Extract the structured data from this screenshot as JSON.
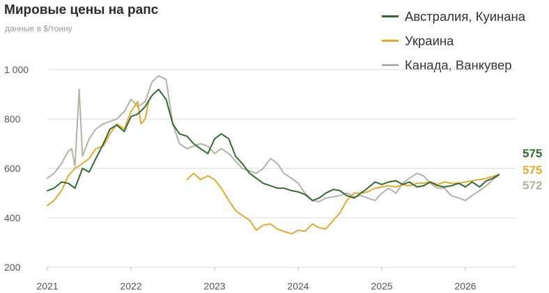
{
  "header": {
    "title": "Мировые цены на рапс",
    "subtitle": "данные в $/тонну"
  },
  "colors": {
    "australia": "#2e6b2f",
    "ukraine": "#e0aa2e",
    "canada": "#b4b2a4",
    "grid": "#d9d9d9"
  },
  "chart_data": {
    "type": "line",
    "title": "Мировые цены на рапс",
    "subtitle": "данные в $/тонну",
    "xlabel": "",
    "ylabel": "",
    "xlim": [
      2021.0,
      2026.6
    ],
    "ylim": [
      200,
      1000
    ],
    "y_ticks": [
      200,
      400,
      600,
      800,
      1000
    ],
    "y_tick_labels": [
      "200",
      "400",
      "600",
      "800",
      "1 000"
    ],
    "x_ticks": [
      2021,
      2022,
      2023,
      2024,
      2025,
      2026
    ],
    "x_tick_labels": [
      "2021",
      "2022",
      "2023",
      "2024",
      "2025",
      "2026"
    ],
    "grid": true,
    "legend": "top-right",
    "series": [
      {
        "name": "Австралия, Куинана",
        "color": "#2e6b2f",
        "end_label": "575",
        "points": [
          [
            2021.0,
            510
          ],
          [
            2021.08,
            520
          ],
          [
            2021.17,
            545
          ],
          [
            2021.25,
            540
          ],
          [
            2021.33,
            520
          ],
          [
            2021.42,
            600
          ],
          [
            2021.5,
            585
          ],
          [
            2021.58,
            640
          ],
          [
            2021.67,
            700
          ],
          [
            2021.75,
            760
          ],
          [
            2021.83,
            775
          ],
          [
            2021.92,
            750
          ],
          [
            2022.0,
            810
          ],
          [
            2022.08,
            820
          ],
          [
            2022.17,
            850
          ],
          [
            2022.25,
            895
          ],
          [
            2022.33,
            920
          ],
          [
            2022.42,
            880
          ],
          [
            2022.5,
            780
          ],
          [
            2022.58,
            740
          ],
          [
            2022.67,
            730
          ],
          [
            2022.75,
            700
          ],
          [
            2022.83,
            680
          ],
          [
            2022.92,
            660
          ],
          [
            2023.0,
            720
          ],
          [
            2023.08,
            740
          ],
          [
            2023.17,
            720
          ],
          [
            2023.25,
            650
          ],
          [
            2023.33,
            620
          ],
          [
            2023.42,
            580
          ],
          [
            2023.5,
            560
          ],
          [
            2023.58,
            540
          ],
          [
            2023.67,
            530
          ],
          [
            2023.75,
            520
          ],
          [
            2023.83,
            520
          ],
          [
            2023.92,
            510
          ],
          [
            2024.0,
            505
          ],
          [
            2024.08,
            495
          ],
          [
            2024.17,
            470
          ],
          [
            2024.25,
            480
          ],
          [
            2024.33,
            500
          ],
          [
            2024.42,
            515
          ],
          [
            2024.5,
            510
          ],
          [
            2024.58,
            490
          ],
          [
            2024.67,
            480
          ],
          [
            2024.75,
            500
          ],
          [
            2024.83,
            520
          ],
          [
            2024.92,
            545
          ],
          [
            2025.0,
            535
          ],
          [
            2025.08,
            545
          ],
          [
            2025.17,
            550
          ],
          [
            2025.25,
            535
          ],
          [
            2025.33,
            545
          ],
          [
            2025.42,
            525
          ],
          [
            2025.5,
            530
          ],
          [
            2025.58,
            545
          ],
          [
            2025.67,
            530
          ],
          [
            2025.75,
            525
          ],
          [
            2025.83,
            530
          ],
          [
            2025.92,
            540
          ],
          [
            2026.0,
            525
          ],
          [
            2026.08,
            545
          ],
          [
            2026.17,
            525
          ],
          [
            2026.25,
            550
          ],
          [
            2026.33,
            560
          ],
          [
            2026.4,
            575
          ]
        ]
      },
      {
        "name": "Украина",
        "color": "#e0aa2e",
        "end_label": "575",
        "points": [
          [
            2021.0,
            450
          ],
          [
            2021.08,
            470
          ],
          [
            2021.17,
            510
          ],
          [
            2021.25,
            570
          ],
          [
            2021.33,
            600
          ],
          [
            2021.42,
            620
          ],
          [
            2021.5,
            640
          ],
          [
            2021.58,
            680
          ],
          [
            2021.67,
            690
          ],
          [
            2021.75,
            740
          ],
          [
            2021.83,
            780
          ],
          [
            2021.92,
            760
          ],
          [
            2022.0,
            830
          ],
          [
            2022.08,
            870
          ],
          [
            2022.12,
            780
          ],
          [
            2022.17,
            800
          ],
          [
            2022.21,
            870
          ],
          null,
          [
            2022.67,
            555
          ],
          [
            2022.75,
            580
          ],
          [
            2022.83,
            555
          ],
          [
            2022.92,
            570
          ],
          [
            2023.0,
            555
          ],
          [
            2023.08,
            520
          ],
          [
            2023.17,
            470
          ],
          [
            2023.25,
            430
          ],
          [
            2023.33,
            410
          ],
          [
            2023.42,
            390
          ],
          [
            2023.5,
            350
          ],
          [
            2023.58,
            370
          ],
          [
            2023.67,
            375
          ],
          [
            2023.75,
            355
          ],
          [
            2023.83,
            345
          ],
          [
            2023.92,
            335
          ],
          [
            2024.0,
            350
          ],
          [
            2024.08,
            345
          ],
          [
            2024.17,
            375
          ],
          [
            2024.25,
            360
          ],
          [
            2024.33,
            355
          ],
          [
            2024.42,
            390
          ],
          [
            2024.5,
            420
          ],
          [
            2024.58,
            470
          ],
          [
            2024.67,
            500
          ],
          [
            2024.75,
            500
          ],
          [
            2024.83,
            505
          ],
          [
            2024.92,
            520
          ],
          [
            2025.0,
            525
          ],
          [
            2025.08,
            530
          ],
          [
            2025.17,
            525
          ],
          [
            2025.25,
            535
          ],
          [
            2025.33,
            530
          ],
          [
            2025.42,
            540
          ],
          [
            2025.5,
            540
          ],
          [
            2025.58,
            545
          ],
          [
            2025.67,
            535
          ],
          [
            2025.75,
            545
          ],
          [
            2025.83,
            540
          ],
          [
            2025.92,
            540
          ],
          [
            2026.0,
            545
          ],
          [
            2026.08,
            550
          ],
          [
            2026.17,
            555
          ],
          [
            2026.25,
            560
          ],
          [
            2026.33,
            568
          ],
          [
            2026.4,
            575
          ]
        ]
      },
      {
        "name": "Канада, Ванкувер",
        "color": "#b4b2a4",
        "end_label": "572",
        "points": [
          [
            2021.0,
            560
          ],
          [
            2021.08,
            580
          ],
          [
            2021.17,
            620
          ],
          [
            2021.25,
            670
          ],
          [
            2021.29,
            680
          ],
          [
            2021.33,
            610
          ],
          [
            2021.38,
            920
          ],
          [
            2021.42,
            650
          ],
          [
            2021.5,
            720
          ],
          [
            2021.58,
            760
          ],
          [
            2021.67,
            780
          ],
          [
            2021.75,
            790
          ],
          [
            2021.83,
            800
          ],
          [
            2021.92,
            830
          ],
          [
            2022.0,
            880
          ],
          [
            2022.08,
            850
          ],
          [
            2022.17,
            870
          ],
          [
            2022.25,
            950
          ],
          [
            2022.33,
            975
          ],
          [
            2022.42,
            960
          ],
          [
            2022.5,
            780
          ],
          [
            2022.58,
            700
          ],
          [
            2022.67,
            680
          ],
          [
            2022.75,
            690
          ],
          [
            2022.83,
            700
          ],
          [
            2022.92,
            690
          ],
          [
            2023.0,
            660
          ],
          [
            2023.08,
            680
          ],
          [
            2023.17,
            660
          ],
          [
            2023.25,
            630
          ],
          [
            2023.33,
            600
          ],
          [
            2023.42,
            590
          ],
          [
            2023.5,
            580
          ],
          [
            2023.58,
            600
          ],
          [
            2023.67,
            640
          ],
          [
            2023.75,
            620
          ],
          [
            2023.83,
            580
          ],
          [
            2023.92,
            560
          ],
          [
            2024.0,
            540
          ],
          [
            2024.08,
            500
          ],
          [
            2024.17,
            470
          ],
          [
            2024.25,
            465
          ],
          [
            2024.33,
            480
          ],
          [
            2024.42,
            485
          ],
          [
            2024.5,
            490
          ],
          [
            2024.58,
            500
          ],
          [
            2024.67,
            485
          ],
          [
            2024.75,
            490
          ],
          [
            2024.83,
            480
          ],
          [
            2024.92,
            470
          ],
          [
            2025.0,
            500
          ],
          [
            2025.08,
            520
          ],
          [
            2025.17,
            500
          ],
          [
            2025.25,
            540
          ],
          [
            2025.33,
            560
          ],
          [
            2025.42,
            580
          ],
          [
            2025.5,
            570
          ],
          [
            2025.58,
            540
          ],
          [
            2025.67,
            520
          ],
          [
            2025.75,
            520
          ],
          [
            2025.83,
            490
          ],
          [
            2025.92,
            480
          ],
          [
            2026.0,
            470
          ],
          [
            2026.08,
            490
          ],
          [
            2026.17,
            510
          ],
          [
            2026.25,
            530
          ],
          [
            2026.33,
            555
          ],
          [
            2026.4,
            572
          ]
        ]
      }
    ]
  }
}
